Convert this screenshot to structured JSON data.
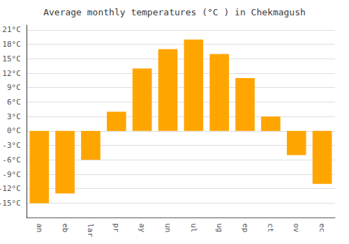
{
  "chart_data": {
    "type": "bar",
    "title": "Average monthly temperatures (°C ) in Chekmagush",
    "categories": [
      "an",
      "eb",
      "lar",
      "pr",
      "ay",
      "un",
      "ul",
      "ug",
      "ep",
      "ct",
      "ov",
      "ec"
    ],
    "values": [
      -15,
      -13,
      -6,
      4,
      13,
      17,
      19,
      16,
      11,
      3,
      -5,
      -11
    ],
    "color": "#FFA500",
    "ylim": [
      -18,
      22
    ],
    "yticks": [
      {
        "value": -15,
        "label": "-15°C"
      },
      {
        "value": -12,
        "label": "-12°C"
      },
      {
        "value": -9,
        "label": "-9°C"
      },
      {
        "value": -6,
        "label": "-6°C"
      },
      {
        "value": -3,
        "label": "-3°C"
      },
      {
        "value": 0,
        "label": "0°C"
      },
      {
        "value": 3,
        "label": "3°C"
      },
      {
        "value": 6,
        "label": "6°C"
      },
      {
        "value": 9,
        "label": "9°C"
      },
      {
        "value": 12,
        "label": "12°C"
      },
      {
        "value": 15,
        "label": "15°C"
      },
      {
        "value": 18,
        "label": "18°C"
      },
      {
        "value": 21,
        "label": "21°C"
      }
    ],
    "grid": true
  }
}
